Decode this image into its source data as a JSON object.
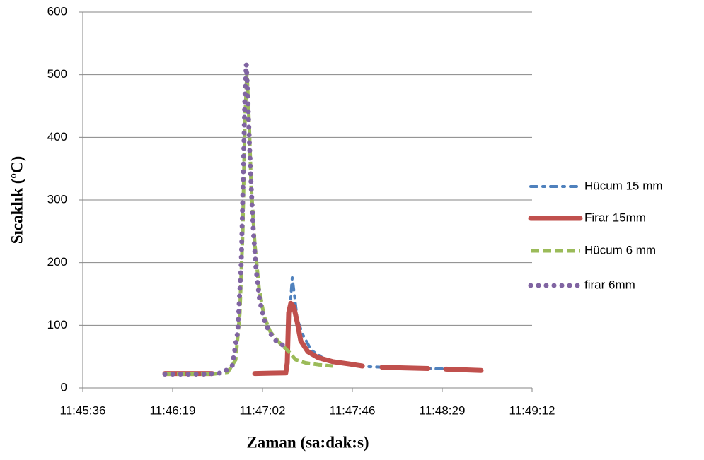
{
  "chart_data": {
    "type": "line",
    "xlabel": "Zaman (sa:dak:s)",
    "ylabel": "Sıcaklık (ºC)",
    "xlim": [
      42336,
      42552
    ],
    "xticks": [
      {
        "value": 42336,
        "label": "11:45:36"
      },
      {
        "value": 42379.2,
        "label": "11:46:19"
      },
      {
        "value": 42422.4,
        "label": "11:47:02"
      },
      {
        "value": 42465.6,
        "label": "11:47:46"
      },
      {
        "value": 42508.8,
        "label": "11:48:29"
      },
      {
        "value": 42552,
        "label": "11:49:12"
      }
    ],
    "ylim": [
      0,
      600
    ],
    "yticks": [
      0,
      100,
      200,
      300,
      400,
      500,
      600
    ],
    "grid": true,
    "legend": "right",
    "series": [
      {
        "name": "Hücum 15 mm",
        "color": "#4f81bd",
        "line_style": "dash-dot",
        "x": [
          42434.0,
          42435.7,
          42436.7,
          42437.7,
          42439.1,
          42441.8,
          42445.9,
          42452.7,
          42462.9,
          42473.1,
          42486.7,
          42500.3,
          42517.3,
          42527.5
        ],
        "values": [
          60,
          130,
          176,
          150,
          110,
          85,
          60,
          45,
          38,
          34,
          32,
          31,
          30,
          29
        ]
      },
      {
        "name": "Firar 15mm",
        "color": "#c0504d",
        "line_style": "solid",
        "x": [
          42375.5,
          42398.2,
          null,
          42418.7,
          42433.6,
          42434.3,
          42435.0,
          42436.0,
          42437.4,
          42439.1,
          42440.8,
          42444.2,
          42449.3,
          42456.1,
          42464.6,
          42470.4,
          null,
          42479.9,
          42490.1,
          42502.0,
          null,
          42510.5,
          42527.5
        ],
        "values": [
          23,
          23,
          null,
          23,
          24,
          40,
          120,
          135,
          130,
          105,
          75,
          58,
          48,
          42,
          38,
          35,
          null,
          33,
          32,
          31,
          null,
          30,
          28
        ]
      },
      {
        "name": "Hücum 6 mm",
        "color": "#9bbb59",
        "line_style": "dash",
        "x": [
          42375.5,
          42398.2,
          42405.7,
          42409.5,
          42411.5,
          42412.9,
          42413.9,
          42414.9,
          42416.0,
          42417.0,
          42418.7,
          42420.7,
          42423.1,
          42426.1,
          42430.6,
          42435.0,
          42438.4,
          42443.1,
          42449.3,
          42456.1
        ],
        "values": [
          22,
          22,
          25,
          45,
          120,
          250,
          420,
          505,
          420,
          320,
          230,
          160,
          115,
          90,
          72,
          58,
          45,
          40,
          37,
          35
        ]
      },
      {
        "name": "firar 6mm",
        "color": "#8064a2",
        "line_style": "dot",
        "x": [
          42375.5,
          42384.6,
          42394.8,
          42403.3,
          42407.8,
          42410.5,
          42412.2,
          42413.2,
          42413.9,
          42414.6,
          42415.3,
          42416.0,
          42417.0,
          42418.0,
          42419.3,
          42421.0,
          42423.1,
          42425.5,
          42428.9,
          42432.3,
          42435.0
        ],
        "values": [
          22,
          22,
          22,
          24,
          35,
          90,
          200,
          350,
          460,
          517,
          470,
          400,
          320,
          250,
          190,
          140,
          110,
          90,
          75,
          68,
          64
        ]
      }
    ]
  }
}
